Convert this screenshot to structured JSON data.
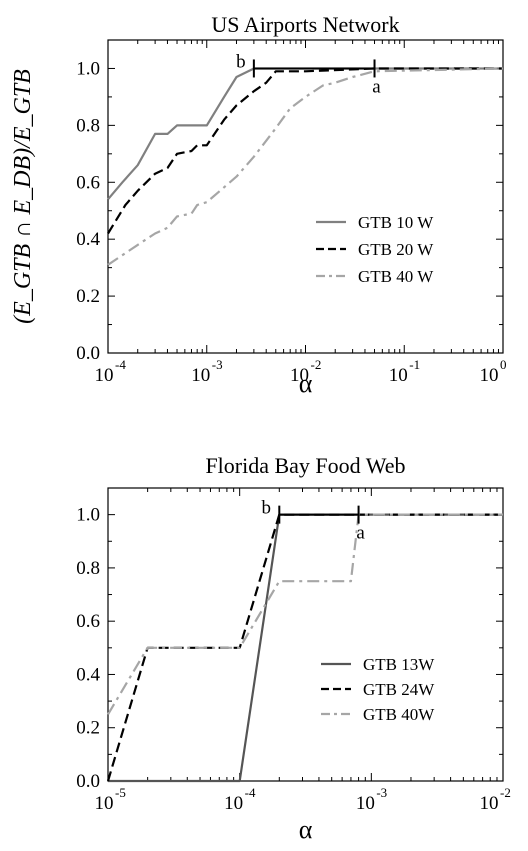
{
  "chart_data": [
    {
      "type": "line",
      "title": "US Airports Network",
      "xlabel": "α",
      "ylabel": "(E_GTB ∩ E_DB)/E_GTB",
      "xscale": "log",
      "xlim": [
        0.0001,
        1
      ],
      "ylim": [
        0,
        1.1
      ],
      "xticks": [
        {
          "base": "10",
          "exp": "-4",
          "value": 0.0001
        },
        {
          "base": "10",
          "exp": "-3",
          "value": 0.001
        },
        {
          "base": "10",
          "exp": "-2",
          "value": 0.01
        },
        {
          "base": "10",
          "exp": "-1",
          "value": 0.1
        },
        {
          "base": "10",
          "exp": "0",
          "value": 1
        }
      ],
      "yticks": [
        "0.0",
        "0.2",
        "0.4",
        "0.6",
        "0.8",
        "1.0"
      ],
      "legend_position": "center-right",
      "series": [
        {
          "name": "GTB 10 W",
          "color": "#808080",
          "dash": "solid",
          "x": [
            0.0001,
            0.00014,
            0.0002,
            0.0003,
            0.0004,
            0.0005,
            0.0007,
            0.001,
            0.0015,
            0.002,
            0.003,
            0.005,
            0.01,
            0.05,
            1
          ],
          "y": [
            0.54,
            0.6,
            0.66,
            0.77,
            0.77,
            0.8,
            0.8,
            0.8,
            0.9,
            0.97,
            1.0,
            1.0,
            1.0,
            1.0,
            1.0
          ]
        },
        {
          "name": "GTB 20 W",
          "color": "#000000",
          "dash": "dashed",
          "x": [
            0.0001,
            0.00015,
            0.0002,
            0.0003,
            0.0004,
            0.0005,
            0.0007,
            0.0008,
            0.001,
            0.0015,
            0.002,
            0.003,
            0.004,
            0.005,
            0.01,
            0.05,
            1
          ],
          "y": [
            0.42,
            0.52,
            0.57,
            0.63,
            0.65,
            0.7,
            0.71,
            0.73,
            0.73,
            0.82,
            0.87,
            0.92,
            0.95,
            0.99,
            0.99,
            1.0,
            1.0
          ]
        },
        {
          "name": "GTB 40 W",
          "color": "#a6a6a6",
          "dash": "dashdot",
          "x": [
            0.0001,
            0.0002,
            0.0003,
            0.0004,
            0.0005,
            0.0007,
            0.0008,
            0.001,
            0.002,
            0.003,
            0.005,
            0.007,
            0.01,
            0.015,
            0.02,
            0.03,
            0.05,
            1
          ],
          "y": [
            0.31,
            0.38,
            0.42,
            0.44,
            0.48,
            0.49,
            0.52,
            0.53,
            0.62,
            0.69,
            0.79,
            0.86,
            0.9,
            0.94,
            0.95,
            0.97,
            0.99,
            1.0
          ]
        }
      ],
      "annotations": [
        {
          "text": "b",
          "x": 0.003,
          "y": 1.0,
          "side": "left"
        },
        {
          "text": "a",
          "x": 0.05,
          "y": 1.0,
          "side": "below"
        }
      ]
    },
    {
      "type": "line",
      "title": "Florida Bay Food Web",
      "xlabel": "α",
      "ylabel": "",
      "xscale": "log",
      "xlim": [
        1e-05,
        0.01
      ],
      "ylim": [
        0,
        1.1
      ],
      "xticks": [
        {
          "base": "10",
          "exp": "-5",
          "value": 1e-05
        },
        {
          "base": "10",
          "exp": "-4",
          "value": 0.0001
        },
        {
          "base": "10",
          "exp": "-3",
          "value": 0.001
        },
        {
          "base": "10",
          "exp": "-2",
          "value": 0.01
        }
      ],
      "yticks": [
        "0.0",
        "0.2",
        "0.4",
        "0.6",
        "0.8",
        "1.0"
      ],
      "legend_position": "center-right",
      "series": [
        {
          "name": "GTB 13W",
          "color": "#555555",
          "dash": "solid",
          "x": [
            1e-05,
            0.0001,
            0.0002,
            0.01
          ],
          "y": [
            0.0,
            0.0,
            1.0,
            1.0
          ]
        },
        {
          "name": "GTB 24W",
          "color": "#000000",
          "dash": "dashed",
          "x": [
            1e-05,
            2e-05,
            0.0001,
            0.0002,
            0.01
          ],
          "y": [
            0.0,
            0.5,
            0.5,
            1.0,
            1.0
          ]
        },
        {
          "name": "GTB 40W",
          "color": "#a6a6a6",
          "dash": "dashdot",
          "x": [
            1e-05,
            2e-05,
            0.0001,
            0.0002,
            0.0007,
            0.0008,
            0.01
          ],
          "y": [
            0.25,
            0.5,
            0.5,
            0.75,
            0.75,
            1.0,
            1.0
          ]
        }
      ],
      "annotations": [
        {
          "text": "b",
          "x": 0.0002,
          "y": 1.0,
          "side": "left"
        },
        {
          "text": "a",
          "x": 0.0008,
          "y": 1.0,
          "side": "below"
        }
      ]
    }
  ]
}
